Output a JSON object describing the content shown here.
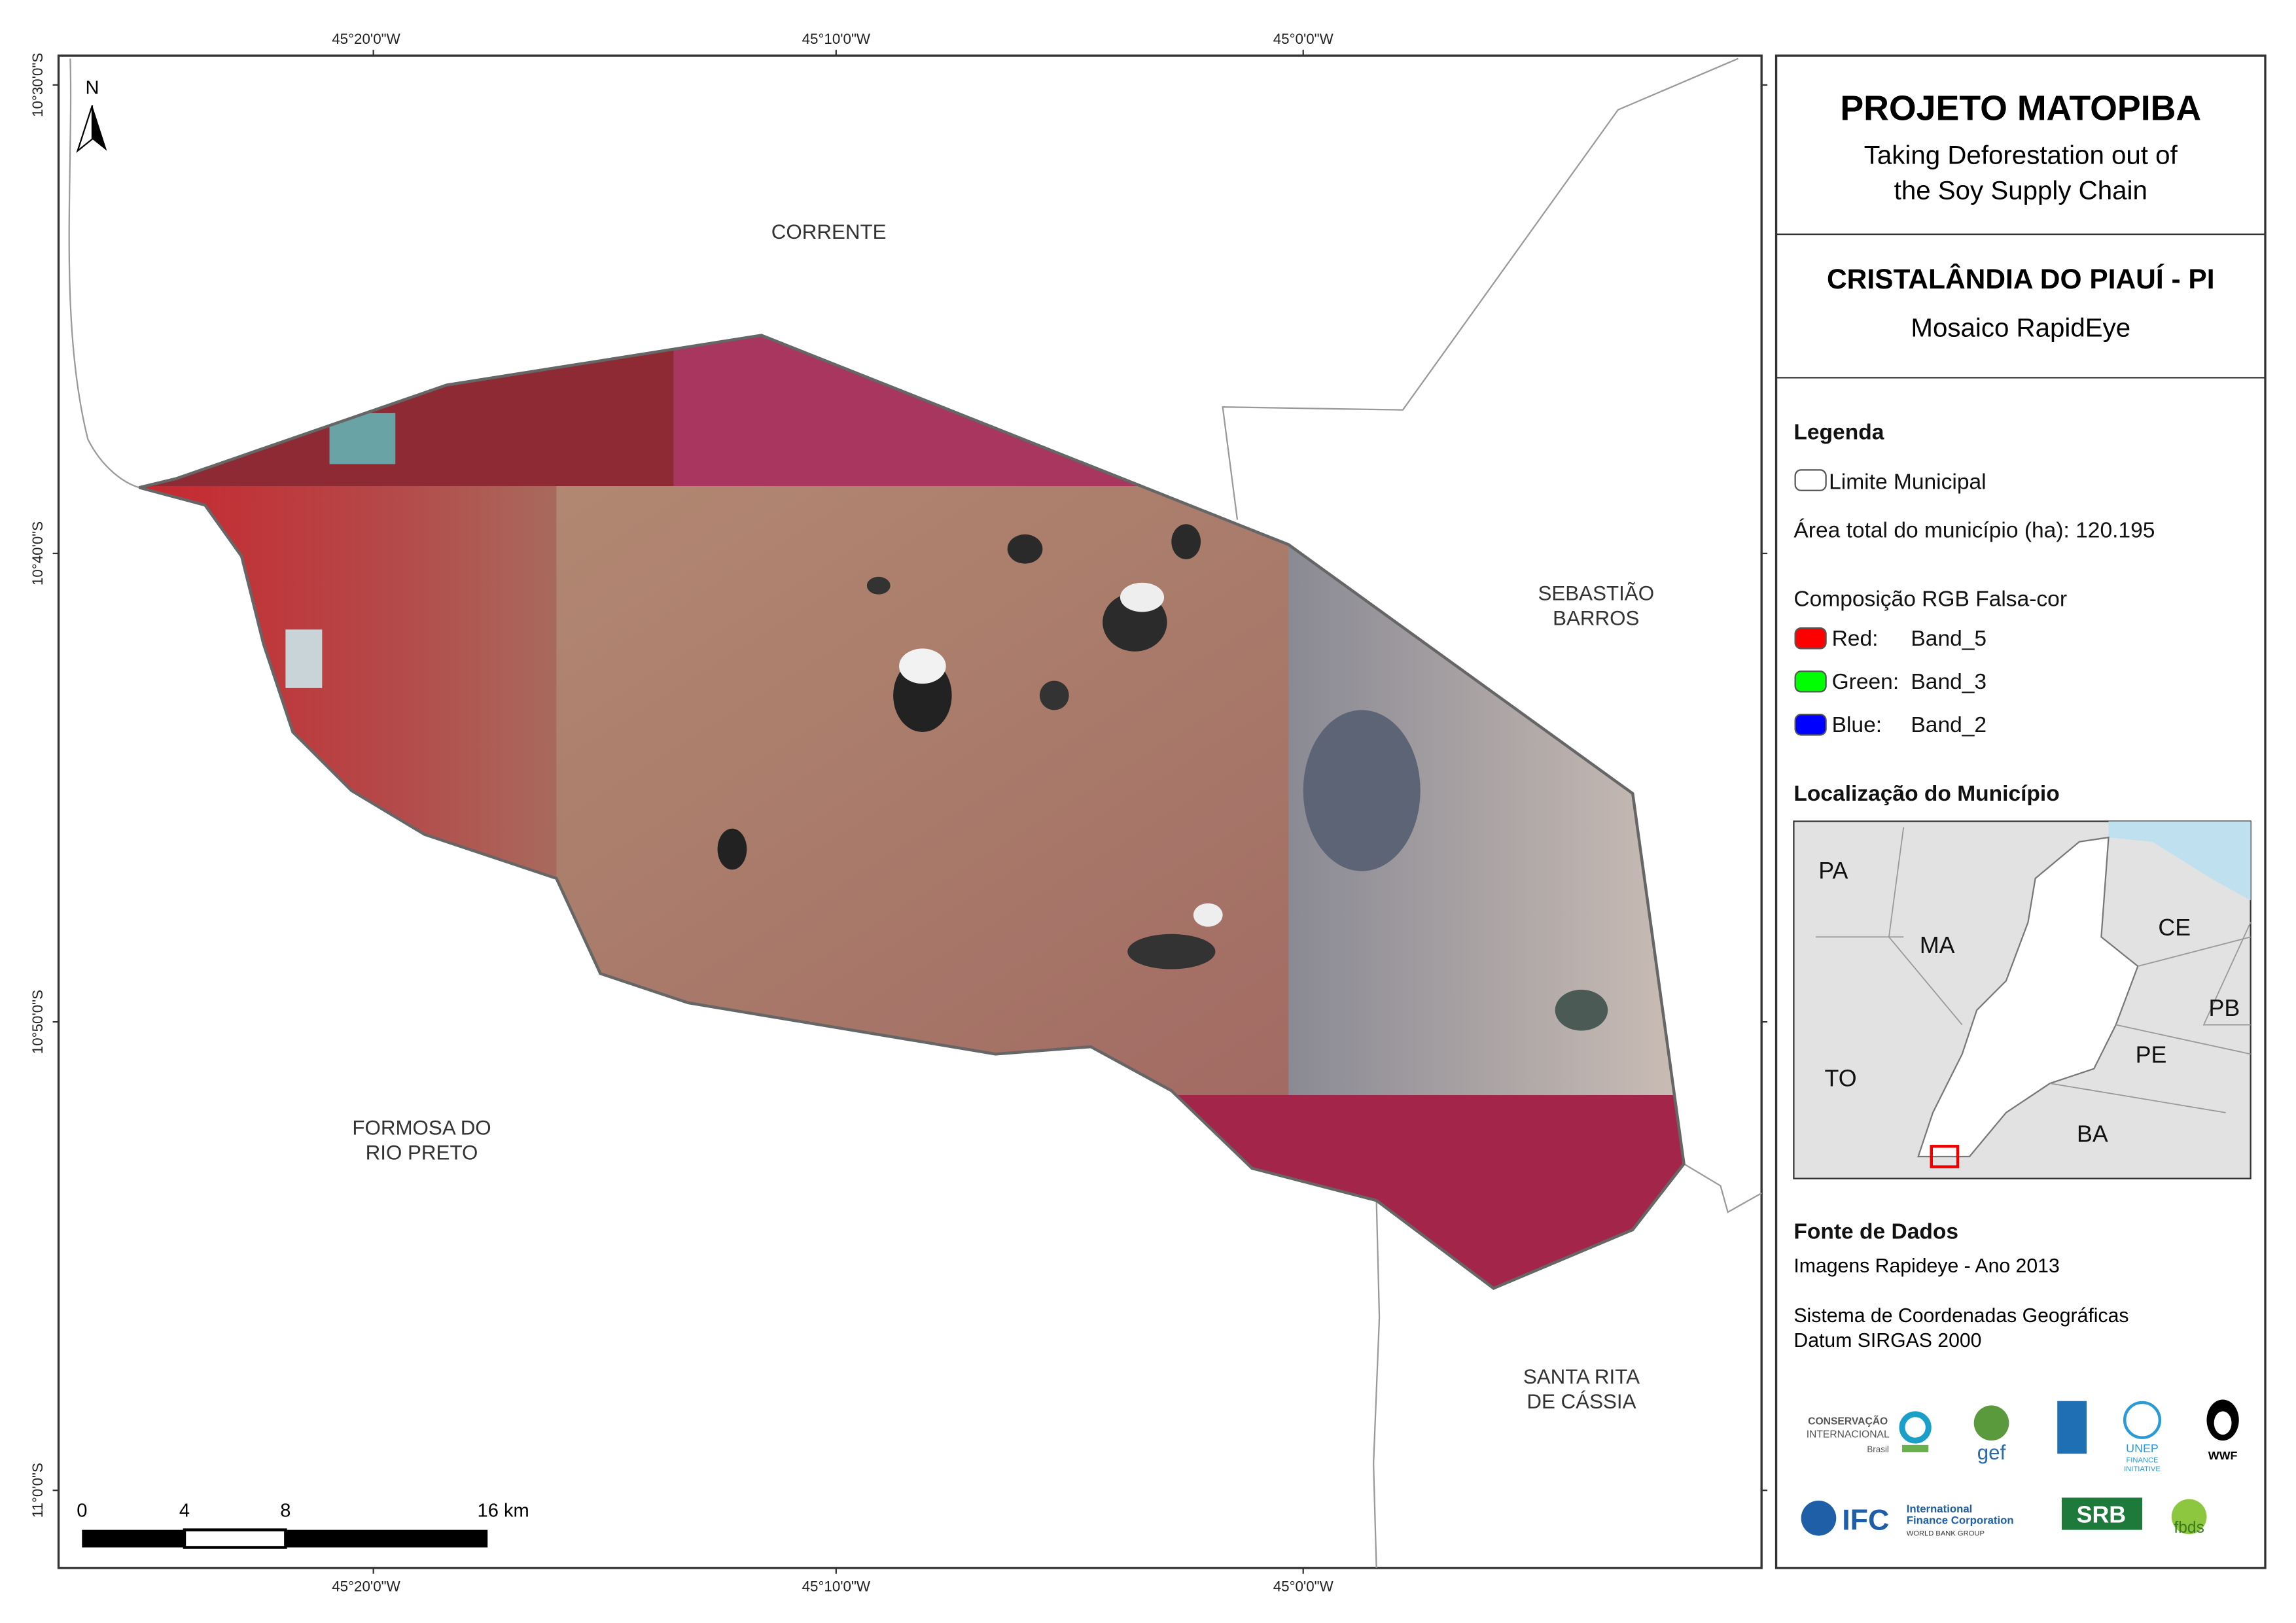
{
  "map": {
    "north": "N",
    "graticule": {
      "top": [
        "45°20'0\"W",
        "45°10'0\"W",
        "45°0'0\"W"
      ],
      "bottom": [
        "45°20'0\"W",
        "45°10'0\"W",
        "45°0'0\"W"
      ],
      "left": [
        "10°30'0\"S",
        "10°40'0\"S",
        "10°50'0\"S",
        "11°0'0\"S"
      ]
    },
    "places": [
      {
        "lines": [
          "CORRENTE"
        ]
      },
      {
        "lines": [
          "SEBASTIÃO",
          "BARROS"
        ]
      },
      {
        "lines": [
          "FORMOSA DO",
          "RIO PRETO"
        ]
      },
      {
        "lines": [
          "SANTA RITA",
          "DE CÁSSIA"
        ]
      }
    ],
    "scale_bar": {
      "labels": [
        "0",
        "4",
        "8",
        "16 km"
      ]
    }
  },
  "panel": {
    "title": "PROJETO MATOPIBA",
    "subtitle": [
      "Taking Deforestation out of",
      "the Soy Supply Chain"
    ],
    "municipality": "CRISTALÂNDIA DO PIAUÍ - PI",
    "mosaic": "Mosaico RapidEye",
    "legend": {
      "heading": "Legenda",
      "limit": "Limite Municipal",
      "area": "Área total do município (ha): 120.195",
      "composition": "Composição RGB Falsa-cor",
      "bands": [
        {
          "label": "Red:",
          "band": "Band_5",
          "color": "#ff0000"
        },
        {
          "label": "Green:",
          "band": "Band_3",
          "color": "#00ff00"
        },
        {
          "label": "Blue:",
          "band": "Band_2",
          "color": "#0000ff"
        }
      ]
    },
    "location": {
      "heading": "Localização do Município",
      "labels": [
        "PA",
        "MA",
        "CE",
        "PB",
        "TO",
        "PE",
        "BA"
      ]
    },
    "sources": {
      "heading": "Fonte de Dados",
      "lines": [
        "Imagens Rapideye - Ano 2013",
        "Sistema de Coordenadas Geográficas",
        "Datum SIRGAS 2000"
      ]
    },
    "logos": [
      "CONSERVAÇÃO",
      "INTERNACIONAL",
      "Brasil",
      "gef",
      "UNEP",
      "FINANCE",
      "INITIATIVE",
      "WWF",
      "IFC",
      "International",
      "Finance Corporation",
      "WORLD BANK GROUP",
      "SRB",
      "fbds"
    ]
  }
}
